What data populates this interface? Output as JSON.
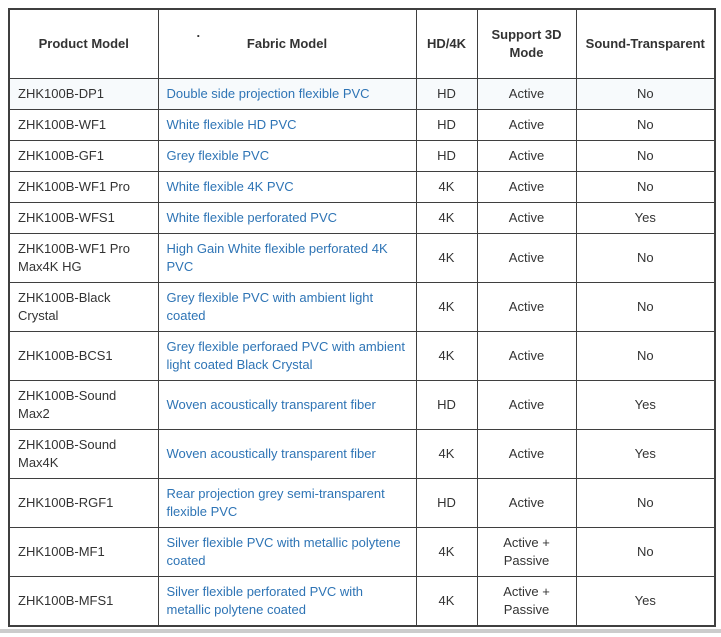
{
  "colors": {
    "link": "#2E74B5",
    "text": "#333333",
    "border": "#3f3f3f",
    "row_highlight": "#f7fafc",
    "bottom_band": "#cccccc"
  },
  "table": {
    "headers": {
      "product": "Product Model",
      "fabric": "Fabric Model",
      "fabric_stray_dot": ".",
      "hd": "HD/4K",
      "mode": "Support 3D Mode",
      "sound": "Sound-Transparent"
    },
    "rows": [
      {
        "product_model": "ZHK100B-DP1",
        "fabric_model": "Double side projection flexible PVC",
        "hd_4k": "HD",
        "support_3d": "Active",
        "sound_transparent": "No"
      },
      {
        "product_model": "ZHK100B-WF1",
        "fabric_model": "White flexible HD PVC",
        "hd_4k": "HD",
        "support_3d": "Active",
        "sound_transparent": "No"
      },
      {
        "product_model": "ZHK100B-GF1",
        "fabric_model": "Grey flexible PVC",
        "hd_4k": "HD",
        "support_3d": "Active",
        "sound_transparent": "No"
      },
      {
        "product_model": "ZHK100B-WF1 Pro",
        "fabric_model": "White flexible 4K PVC",
        "hd_4k": "4K",
        "support_3d": "Active",
        "sound_transparent": "No"
      },
      {
        "product_model": "ZHK100B-WFS1",
        "fabric_model": "White flexible perforated PVC",
        "hd_4k": "4K",
        "support_3d": "Active",
        "sound_transparent": "Yes"
      },
      {
        "product_model": "ZHK100B-WF1 Pro Max4K HG",
        "fabric_model": "High Gain White flexible perforated 4K PVC",
        "hd_4k": "4K",
        "support_3d": "Active",
        "sound_transparent": "No"
      },
      {
        "product_model": "ZHK100B-Black Crystal",
        "fabric_model": "Grey flexible PVC with ambient light coated",
        "hd_4k": "4K",
        "support_3d": "Active",
        "sound_transparent": "No"
      },
      {
        "product_model": "ZHK100B-BCS1",
        "fabric_model": "Grey flexible perforaed PVC with ambient light coated Black Crystal",
        "hd_4k": "4K",
        "support_3d": "Active",
        "sound_transparent": "No"
      },
      {
        "product_model": "ZHK100B-Sound Max2",
        "fabric_model": "Woven acoustically transparent fiber",
        "hd_4k": "HD",
        "support_3d": "Active",
        "sound_transparent": "Yes"
      },
      {
        "product_model": "ZHK100B-Sound Max4K",
        "fabric_model": "Woven acoustically transparent fiber",
        "hd_4k": "4K",
        "support_3d": "Active",
        "sound_transparent": "Yes"
      },
      {
        "product_model": "ZHK100B-RGF1",
        "fabric_model": "Rear projection grey semi-transparent flexible PVC",
        "hd_4k": "HD",
        "support_3d": "Active",
        "sound_transparent": "No"
      },
      {
        "product_model": "ZHK100B-MF1",
        "fabric_model": "Silver flexible PVC with metallic polytene coated",
        "hd_4k": "4K",
        "support_3d": "Active + Passive",
        "sound_transparent": "No"
      },
      {
        "product_model": "ZHK100B-MFS1",
        "fabric_model": "Silver flexible perforated PVC with metallic polytene coated",
        "hd_4k": "4K",
        "support_3d": "Active + Passive",
        "sound_transparent": "Yes"
      }
    ]
  }
}
